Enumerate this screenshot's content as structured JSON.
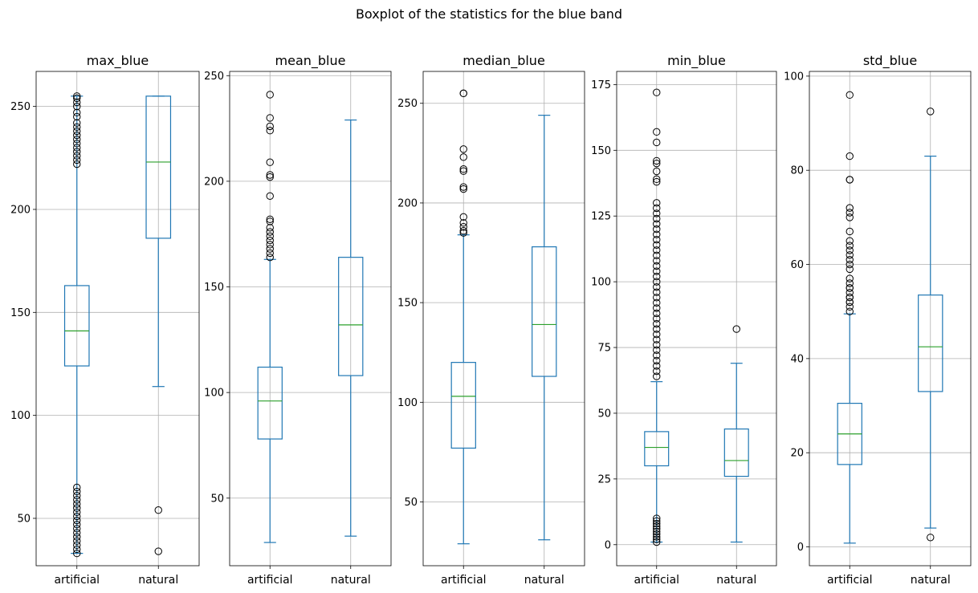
{
  "figure": {
    "suptitle": "Boxplot of the statistics for the blue band"
  },
  "colors": {
    "box": "#1f77b4",
    "median": "#2ca02c",
    "grid": "#b0b0b0",
    "flier_edge": "#000000"
  },
  "chart_data": [
    {
      "type": "boxplot",
      "title": "max_blue",
      "categories": [
        "artificial",
        "natural"
      ],
      "ylim": [
        27,
        267
      ],
      "yticks": [
        50,
        100,
        150,
        200,
        250
      ],
      "grid": true,
      "boxes": [
        {
          "category": "artificial",
          "whislo": 33,
          "q1": 124,
          "med": 141,
          "q3": 163,
          "whishi": 255,
          "fliers": [
            255,
            254,
            252,
            250,
            247,
            245,
            242,
            240,
            238,
            236,
            234,
            232,
            230,
            228,
            226,
            224,
            222,
            65,
            63,
            61,
            59,
            57,
            55,
            53,
            51,
            49,
            47,
            45,
            43,
            41,
            39,
            37,
            35,
            33
          ]
        },
        {
          "category": "natural",
          "whislo": 114,
          "q1": 186,
          "med": 223,
          "q3": 255,
          "whishi": 255,
          "fliers": [
            54,
            34
          ]
        }
      ]
    },
    {
      "type": "boxplot",
      "title": "mean_blue",
      "categories": [
        "artificial",
        "natural"
      ],
      "ylim": [
        18,
        252
      ],
      "yticks": [
        50,
        100,
        150,
        200,
        250
      ],
      "grid": true,
      "boxes": [
        {
          "category": "artificial",
          "whislo": 29,
          "q1": 78,
          "med": 96,
          "q3": 112,
          "whishi": 163,
          "fliers": [
            241,
            230,
            226,
            224,
            209,
            203,
            202,
            193,
            182,
            181,
            178,
            176,
            174,
            172,
            170,
            168,
            166,
            164
          ]
        },
        {
          "category": "natural",
          "whislo": 32,
          "q1": 108,
          "med": 132,
          "q3": 164,
          "whishi": 229,
          "fliers": []
        }
      ]
    },
    {
      "type": "boxplot",
      "title": "median_blue",
      "categories": [
        "artificial",
        "natural"
      ],
      "ylim": [
        18,
        266
      ],
      "yticks": [
        50,
        100,
        150,
        200,
        250
      ],
      "grid": true,
      "boxes": [
        {
          "category": "artificial",
          "whislo": 29,
          "q1": 77,
          "med": 103,
          "q3": 120,
          "whishi": 184,
          "fliers": [
            255,
            255,
            227,
            223,
            217,
            216,
            208,
            207,
            193,
            190,
            188,
            186,
            185
          ]
        },
        {
          "category": "natural",
          "whislo": 31,
          "q1": 113,
          "med": 139,
          "q3": 178,
          "whishi": 244,
          "fliers": []
        }
      ]
    },
    {
      "type": "boxplot",
      "title": "min_blue",
      "categories": [
        "artificial",
        "natural"
      ],
      "ylim": [
        -8,
        180
      ],
      "yticks": [
        0,
        25,
        50,
        75,
        100,
        125,
        150,
        175
      ],
      "grid": true,
      "boxes": [
        {
          "category": "artificial",
          "whislo": 1,
          "q1": 30,
          "med": 37,
          "q3": 43,
          "whishi": 62,
          "fliers": [
            172,
            157,
            153,
            146,
            145,
            142,
            139,
            138,
            130,
            128,
            126,
            124,
            122,
            120,
            118,
            116,
            114,
            112,
            110,
            108,
            106,
            104,
            102,
            100,
            98,
            96,
            94,
            92,
            90,
            88,
            86,
            84,
            82,
            80,
            78,
            76,
            74,
            72,
            70,
            68,
            66,
            64,
            10,
            9,
            8,
            7,
            6,
            5,
            4,
            3,
            2,
            1
          ]
        },
        {
          "category": "natural",
          "whislo": 1,
          "q1": 26,
          "med": 32,
          "q3": 44,
          "whishi": 69,
          "fliers": [
            82
          ]
        }
      ]
    },
    {
      "type": "boxplot",
      "title": "std_blue",
      "categories": [
        "artificial",
        "natural"
      ],
      "ylim": [
        -4,
        101
      ],
      "yticks": [
        0,
        20,
        40,
        60,
        80,
        100
      ],
      "grid": true,
      "boxes": [
        {
          "category": "artificial",
          "whislo": 0.8,
          "q1": 17.5,
          "med": 24,
          "q3": 30.5,
          "whishi": 49.5,
          "fliers": [
            96,
            83,
            78,
            78,
            72,
            71,
            70,
            67,
            65,
            64,
            63,
            62,
            61,
            60,
            59,
            57,
            56,
            55,
            55,
            54,
            53,
            53,
            52,
            52,
            51,
            50
          ]
        },
        {
          "category": "natural",
          "whislo": 4,
          "q1": 33,
          "med": 42.5,
          "q3": 53.5,
          "whishi": 83,
          "fliers": [
            92.5,
            2
          ]
        }
      ]
    }
  ]
}
